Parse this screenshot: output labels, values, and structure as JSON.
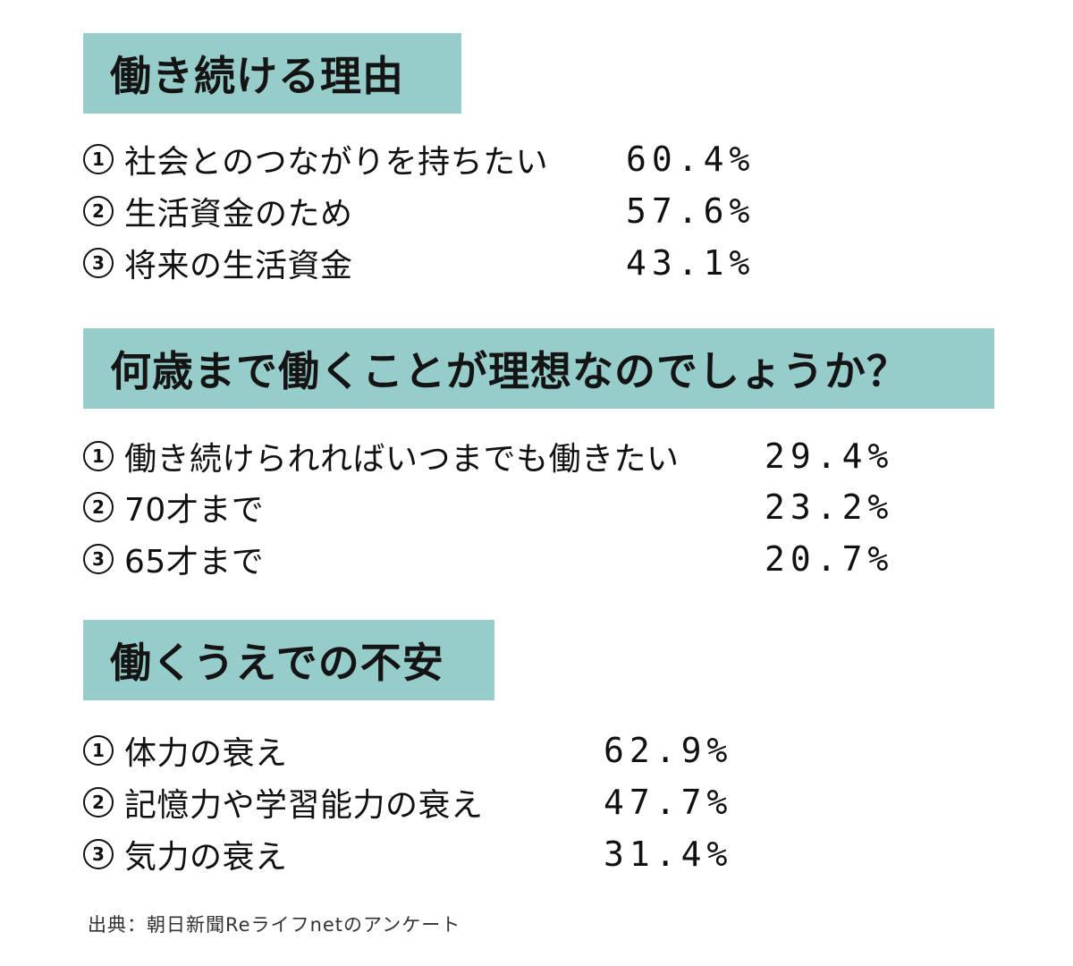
{
  "colors": {
    "heading_bg": "#96ccca",
    "text": "#111111"
  },
  "sections": [
    {
      "heading": "働き続ける理由",
      "items": [
        {
          "number": "1",
          "label": "社会とのつながりを持ちたい",
          "value": "60.4%"
        },
        {
          "number": "2",
          "label": "生活資金のため",
          "value": "57.6%"
        },
        {
          "number": "3",
          "label": "将来の生活資金",
          "value": "43.1%"
        }
      ]
    },
    {
      "heading": "何歳まで働くことが理想なのでしょうか？",
      "items": [
        {
          "number": "1",
          "label": "働き続けられればいつまでも働きたい",
          "value": "29.4%"
        },
        {
          "number": "2",
          "label": " 70才まで",
          "value": "23.2%"
        },
        {
          "number": "3",
          "label": " 65才まで",
          "value": "20.7%"
        }
      ]
    },
    {
      "heading": "働くうえでの不安",
      "items": [
        {
          "number": "1",
          "label": "体力の衰え",
          "value": "62.9%"
        },
        {
          "number": "2",
          "label": "記憶力や学習能力の衰え",
          "value": "47.7%"
        },
        {
          "number": "3",
          "label": "気力の衰え",
          "value": "31.4%"
        }
      ]
    }
  ],
  "source": "出典：朝日新聞Reライフnetのアンケート"
}
